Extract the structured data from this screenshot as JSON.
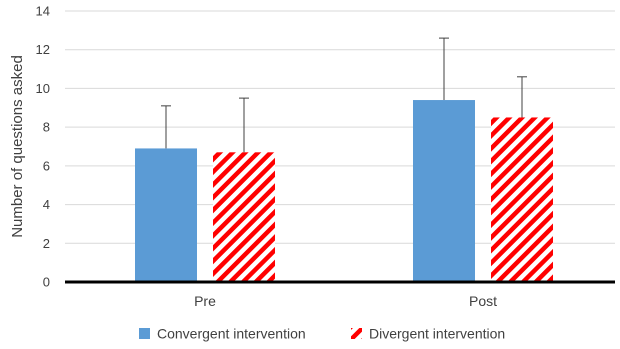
{
  "chart_data": {
    "type": "bar",
    "categories": [
      "Pre",
      "Post"
    ],
    "series": [
      {
        "name": "Convergent intervention",
        "values": [
          6.9,
          9.4
        ],
        "error_upper": [
          2.2,
          3.2
        ],
        "color": "#5B9BD5",
        "pattern": "solid"
      },
      {
        "name": "Divergent intervention",
        "values": [
          6.7,
          8.5
        ],
        "error_upper": [
          2.8,
          2.1
        ],
        "color": "#FF0000",
        "pattern": "diagonal-stripes"
      }
    ],
    "title": "",
    "xlabel": "",
    "ylabel": "Number of questions asked",
    "ylim": [
      0,
      14
    ],
    "yticks": [
      0,
      2,
      4,
      6,
      8,
      10,
      12,
      14
    ],
    "grid": true,
    "legend_position": "bottom"
  }
}
